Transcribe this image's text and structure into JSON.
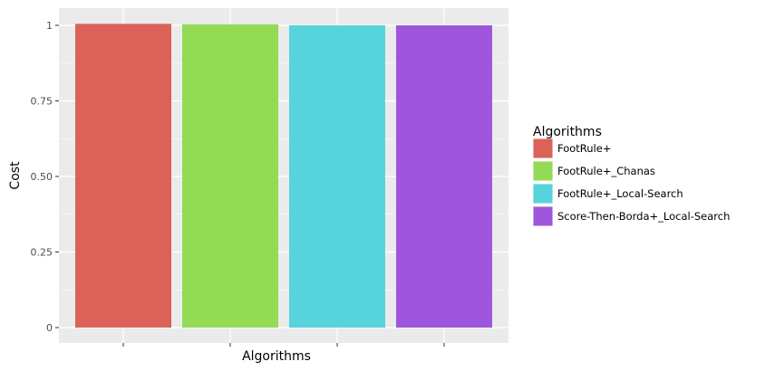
{
  "chart_data": {
    "type": "bar",
    "categories": [
      "FootRule+",
      "FootRule+_Chanas",
      "FootRule+_Local-Search",
      "Score-Then-Borda+_Local-Search"
    ],
    "values": [
      1.005,
      1.003,
      1.0,
      1.0
    ],
    "xlabel": "Algorithms",
    "ylabel": "Cost",
    "ylim": [
      0,
      1.05
    ],
    "yticks": [
      0,
      0.25,
      0.5,
      0.75,
      1
    ],
    "ytick_labels": [
      "0",
      "0.25",
      "0.50",
      "0.75",
      "1"
    ],
    "grid": true,
    "legend": {
      "title": "Algorithms",
      "placement": "right",
      "entries": [
        "FootRule+",
        "FootRule+_Chanas",
        "FootRule+_Local-Search",
        "Score-Then-Borda+_Local-Search"
      ]
    },
    "colors": [
      "#dc6159",
      "#94db55",
      "#57d3dc",
      "#9e57dc"
    ],
    "panel_background": "#ebebeb",
    "grid_color": "#ffffff"
  }
}
